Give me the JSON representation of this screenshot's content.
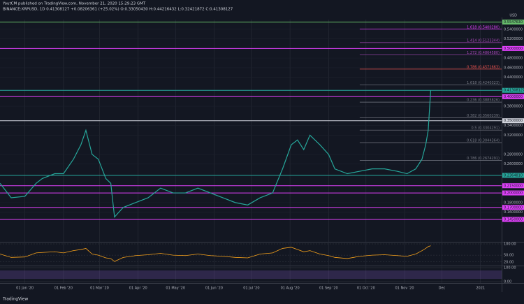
{
  "header": {
    "publisher": "YoutCM published on TradingView.com, November 21, 2020 15:29:23 GMT",
    "symbol": "BINANCE:XRPUSD, 1D 0.41308127 +0.08206361 (+25.02%) O:0.33050430 H:0.44216432 L:0.32421872 C:0.41308127",
    "currency": "USD"
  },
  "footer": {
    "brand": "TradingView"
  },
  "chart_data": {
    "type": "line",
    "x": [
      11,
      20,
      31,
      40,
      45,
      55,
      62,
      70,
      76,
      80,
      85,
      90,
      96,
      100,
      103,
      110,
      120,
      130,
      140,
      150,
      160,
      170,
      180,
      190,
      200,
      210,
      220,
      230,
      238,
      245,
      250,
      255,
      260,
      268,
      275,
      280,
      290,
      300,
      310,
      320,
      330,
      338,
      345,
      350,
      353,
      355,
      357
    ],
    "values": [
      0.22,
      0.19,
      0.193,
      0.22,
      0.23,
      0.24,
      0.24,
      0.27,
      0.3,
      0.33,
      0.28,
      0.27,
      0.23,
      0.22,
      0.15,
      0.17,
      0.18,
      0.19,
      0.21,
      0.2,
      0.2,
      0.21,
      0.2,
      0.19,
      0.18,
      0.175,
      0.19,
      0.2,
      0.25,
      0.3,
      0.31,
      0.29,
      0.32,
      0.3,
      0.28,
      0.25,
      0.24,
      0.245,
      0.25,
      0.25,
      0.245,
      0.24,
      0.25,
      0.27,
      0.3,
      0.33,
      0.41308127
    ],
    "color": "#26a69a",
    "xlim": [
      11,
      414
    ],
    "xticks": [
      {
        "value": 31,
        "label": "01 Jan '20"
      },
      {
        "value": 62,
        "label": "01 Feb '20"
      },
      {
        "value": 91,
        "label": "01 Mar '20"
      },
      {
        "value": 122,
        "label": "01 Apr '20"
      },
      {
        "value": 152,
        "label": "01 May '20"
      },
      {
        "value": 183,
        "label": "01 Jun '20"
      },
      {
        "value": 213,
        "label": "01 Jul '20"
      },
      {
        "value": 244,
        "label": "01 Aug '20"
      },
      {
        "value": 275,
        "label": "01 Sep '20"
      },
      {
        "value": 305,
        "label": "01 Oct '20"
      },
      {
        "value": 336,
        "label": "01 Nov '20"
      },
      {
        "value": 366,
        "label": "Dec"
      },
      {
        "value": 397,
        "label": "2021"
      }
    ],
    "ylim": [
      0.1,
      0.56
    ],
    "yticks": [
      {
        "value": 0.54,
        "label": "0.5400000"
      },
      {
        "value": 0.52,
        "label": "0.5200000"
      },
      {
        "value": 0.48,
        "label": "0.4800000"
      },
      {
        "value": 0.46,
        "label": "0.4600000"
      },
      {
        "value": 0.44,
        "label": "0.4400000"
      },
      {
        "value": 0.38,
        "label": "0.3800000"
      },
      {
        "value": 0.34,
        "label": "0.3400000"
      },
      {
        "value": 0.32,
        "label": "0.3200000"
      },
      {
        "value": 0.28,
        "label": "0.2800000"
      },
      {
        "value": 0.26,
        "label": "0.2600000"
      },
      {
        "value": 0.18,
        "label": "0.1800000"
      },
      {
        "value": 0.16,
        "label": "0.1600000"
      }
    ],
    "grid": true,
    "levels": [
      {
        "value": 0.554763,
        "label": "0.5547630",
        "color": "#66bb6a",
        "style": "box"
      },
      {
        "value": 0.540028,
        "label": "1.618 (0.5400280)",
        "color": "#e040fb",
        "style": "fib"
      },
      {
        "value": 0.5123344,
        "label": "1.414 (0.5123344)",
        "color": "#ab47bc",
        "style": "fib"
      },
      {
        "value": 0.5,
        "label": "0.5000000",
        "color": "#e040fb",
        "style": "box"
      },
      {
        "value": 0.486458,
        "label": "1.272 (0.4864580)",
        "color": "#ab47bc",
        "style": "fib"
      },
      {
        "value": 0.4571663,
        "label": "0.786 (0.4571663)",
        "color": "#ef5350",
        "style": "fib"
      },
      {
        "value": 0.4240323,
        "label": "1.618 (0.4240323)",
        "color": "#787b86",
        "style": "fib"
      },
      {
        "value": 0.41308127,
        "label": "0.41308127",
        "color": "#26a69a",
        "style": "box"
      },
      {
        "value": 0.4,
        "label": "0.4000000",
        "color": "#e040fb",
        "style": "box"
      },
      {
        "value": 0.3885826,
        "label": "0.236 (0.3885826)",
        "color": "#787b86",
        "style": "fib"
      },
      {
        "value": 0.3560239,
        "label": "0.382 (0.3560239)",
        "color": "#787b86",
        "style": "fib"
      },
      {
        "value": 0.35,
        "label": "0.3500000",
        "color": "#d1d4dc",
        "style": "box"
      },
      {
        "value": 0.3304291,
        "label": "0.5 (0.3304291)",
        "color": "#787b86",
        "style": "fib"
      },
      {
        "value": 0.3044364,
        "label": "0.618 (0.3044364)",
        "color": "#787b86",
        "style": "fib"
      },
      {
        "value": 0.2674291,
        "label": "0.786 (0.2674291)",
        "color": "#787b86",
        "style": "fib"
      },
      {
        "value": 0.236481,
        "label": "0.2364810",
        "color": "#26a69a",
        "style": "box"
      },
      {
        "value": 0.215,
        "label": "0.2150000",
        "color": "#e040fb",
        "style": "box"
      },
      {
        "value": 0.2,
        "label": "0.2000000",
        "color": "#e040fb",
        "style": "box"
      },
      {
        "value": 0.17,
        "label": "0.1700000",
        "color": "#e040fb",
        "style": "box"
      },
      {
        "value": 0.145,
        "label": "0.1450000",
        "color": "#e040fb",
        "style": "box"
      }
    ],
    "rsi": {
      "values": [
        55,
        40,
        42,
        60,
        62,
        65,
        60,
        70,
        75,
        80,
        55,
        50,
        38,
        35,
        22,
        40,
        48,
        52,
        58,
        50,
        48,
        55,
        48,
        45,
        40,
        38,
        55,
        60,
        80,
        85,
        75,
        65,
        70,
        55,
        48,
        40,
        35,
        45,
        50,
        52,
        48,
        45,
        55,
        70,
        80,
        88,
        92
      ],
      "color": "#f7a21b",
      "ylim": [
        10,
        100
      ],
      "yticks": [
        {
          "value": 100,
          "label": "100.00"
        },
        {
          "value": 50,
          "label": "50.00"
        },
        {
          "value": 20,
          "label": "20.00"
        }
      ]
    },
    "stoch": {
      "ylim": [
        0,
        100
      ],
      "yticks": [
        {
          "value": 100,
          "label": "100.00"
        },
        {
          "value": 0,
          "label": "0.00"
        }
      ]
    }
  }
}
